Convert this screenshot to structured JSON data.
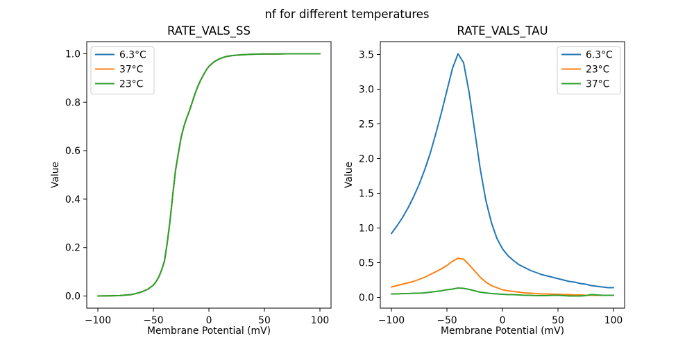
{
  "figure": {
    "suptitle": "nf for different temperatures",
    "background": "#ffffff",
    "text_color": "#000000",
    "frame_color": "#000000",
    "legend_border_color": "#cccccc",
    "legend_background": "rgba(255,255,255,0.8)"
  },
  "palette": {
    "blue": "#1f77b4",
    "orange": "#ff7f0e",
    "green": "#2ca02c"
  },
  "chart_data": [
    {
      "id": "ss",
      "type": "line",
      "title": "RATE_VALS_SS",
      "xlabel": "Membrane Potential (mV)",
      "ylabel": "Value",
      "grid": false,
      "xlim": [
        -110,
        110
      ],
      "ylim": [
        -0.05,
        1.05
      ],
      "xticks": [
        -100,
        -50,
        0,
        50,
        100
      ],
      "xtick_labels": [
        "−100",
        "−50",
        "0",
        "50",
        "100"
      ],
      "yticks": [
        0.0,
        0.2,
        0.4,
        0.6,
        0.8,
        1.0
      ],
      "ytick_labels": [
        "0.0",
        "0.2",
        "0.4",
        "0.6",
        "0.8",
        "1.0"
      ],
      "legend": {
        "loc": "upper-left"
      },
      "x": [
        -100,
        -90,
        -80,
        -70,
        -65,
        -60,
        -55,
        -50,
        -47.5,
        -45,
        -42.5,
        -40,
        -37.5,
        -35,
        -32.5,
        -30,
        -27.5,
        -25,
        -22.5,
        -20,
        -17.5,
        -15,
        -12.5,
        -10,
        -7.5,
        -5,
        -2.5,
        0,
        5,
        10,
        15,
        20,
        25,
        30,
        40,
        50,
        60,
        70,
        80,
        90,
        100
      ],
      "series": [
        {
          "name": "6.3°C",
          "color": "#1f77b4",
          "values": [
            0.0002,
            0.0008,
            0.002,
            0.006,
            0.011,
            0.018,
            0.028,
            0.045,
            0.06,
            0.08,
            0.108,
            0.145,
            0.22,
            0.31,
            0.42,
            0.52,
            0.59,
            0.655,
            0.7,
            0.735,
            0.765,
            0.8,
            0.835,
            0.865,
            0.89,
            0.912,
            0.932,
            0.948,
            0.968,
            0.98,
            0.988,
            0.992,
            0.994,
            0.996,
            0.998,
            0.999,
            0.999,
            1.0,
            1.0,
            1.0,
            1.0
          ]
        },
        {
          "name": "37°C",
          "color": "#ff7f0e",
          "values": [
            0.0002,
            0.0008,
            0.002,
            0.006,
            0.011,
            0.018,
            0.028,
            0.045,
            0.06,
            0.08,
            0.108,
            0.145,
            0.22,
            0.31,
            0.42,
            0.52,
            0.59,
            0.655,
            0.7,
            0.735,
            0.765,
            0.8,
            0.835,
            0.865,
            0.89,
            0.912,
            0.932,
            0.948,
            0.968,
            0.98,
            0.988,
            0.992,
            0.994,
            0.996,
            0.998,
            0.999,
            0.999,
            1.0,
            1.0,
            1.0,
            1.0
          ]
        },
        {
          "name": "23°C",
          "color": "#2ca02c",
          "values": [
            0.0002,
            0.0008,
            0.002,
            0.006,
            0.011,
            0.018,
            0.028,
            0.045,
            0.06,
            0.08,
            0.108,
            0.145,
            0.22,
            0.31,
            0.42,
            0.52,
            0.59,
            0.655,
            0.7,
            0.735,
            0.765,
            0.8,
            0.835,
            0.865,
            0.89,
            0.912,
            0.932,
            0.948,
            0.968,
            0.98,
            0.988,
            0.992,
            0.994,
            0.996,
            0.998,
            0.999,
            0.999,
            1.0,
            1.0,
            1.0,
            1.0
          ]
        }
      ]
    },
    {
      "id": "tau",
      "type": "line",
      "title": "RATE_VALS_TAU",
      "xlabel": "Membrane Potential (mV)",
      "ylabel": "Value",
      "grid": false,
      "xlim": [
        -110,
        110
      ],
      "ylim": [
        -0.155,
        3.685
      ],
      "xticks": [
        -100,
        -50,
        0,
        50,
        100
      ],
      "xtick_labels": [
        "−100",
        "−50",
        "0",
        "50",
        "100"
      ],
      "yticks": [
        0.0,
        0.5,
        1.0,
        1.5,
        2.0,
        2.5,
        3.0,
        3.5
      ],
      "ytick_labels": [
        "0.0",
        "0.5",
        "1.0",
        "1.5",
        "2.0",
        "2.5",
        "3.0",
        "3.5"
      ],
      "legend": {
        "loc": "upper-right"
      },
      "x": [
        -100,
        -95,
        -90,
        -85,
        -80,
        -75,
        -70,
        -65,
        -60,
        -55,
        -50,
        -45,
        -40,
        -35,
        -30,
        -25,
        -20,
        -15,
        -10,
        -5,
        0,
        5,
        10,
        15,
        20,
        25,
        30,
        35,
        40,
        45,
        50,
        55,
        60,
        65,
        70,
        75,
        80,
        85,
        90,
        95,
        100
      ],
      "series": [
        {
          "name": "6.3°C",
          "color": "#1f77b4",
          "values": [
            0.92,
            1.03,
            1.15,
            1.29,
            1.45,
            1.63,
            1.84,
            2.08,
            2.36,
            2.66,
            2.98,
            3.3,
            3.51,
            3.38,
            2.95,
            2.4,
            1.85,
            1.4,
            1.08,
            0.85,
            0.7,
            0.6,
            0.53,
            0.47,
            0.43,
            0.39,
            0.36,
            0.33,
            0.31,
            0.29,
            0.27,
            0.25,
            0.23,
            0.22,
            0.2,
            0.19,
            0.17,
            0.16,
            0.15,
            0.14,
            0.14
          ]
        },
        {
          "name": "23°C",
          "color": "#ff7f0e",
          "values": [
            0.15,
            0.17,
            0.19,
            0.21,
            0.23,
            0.26,
            0.29,
            0.33,
            0.37,
            0.41,
            0.46,
            0.52,
            0.565,
            0.55,
            0.47,
            0.38,
            0.29,
            0.22,
            0.17,
            0.14,
            0.11,
            0.095,
            0.085,
            0.075,
            0.065,
            0.06,
            0.055,
            0.05,
            0.05,
            0.045,
            0.045,
            0.04,
            0.04,
            0.035,
            0.035,
            0.03,
            0.03,
            0.03,
            0.03,
            0.03,
            0.03
          ]
        },
        {
          "name": "37°C",
          "color": "#2ca02c",
          "values": [
            0.05,
            0.05,
            0.055,
            0.055,
            0.06,
            0.06,
            0.065,
            0.075,
            0.085,
            0.095,
            0.11,
            0.12,
            0.135,
            0.13,
            0.115,
            0.095,
            0.075,
            0.065,
            0.055,
            0.05,
            0.045,
            0.04,
            0.04,
            0.035,
            0.03,
            0.03,
            0.025,
            0.025,
            0.025,
            0.03,
            0.03,
            0.025,
            0.02,
            0.02,
            0.02,
            0.025,
            0.04,
            0.035,
            0.03,
            0.03,
            0.03
          ]
        }
      ]
    }
  ]
}
